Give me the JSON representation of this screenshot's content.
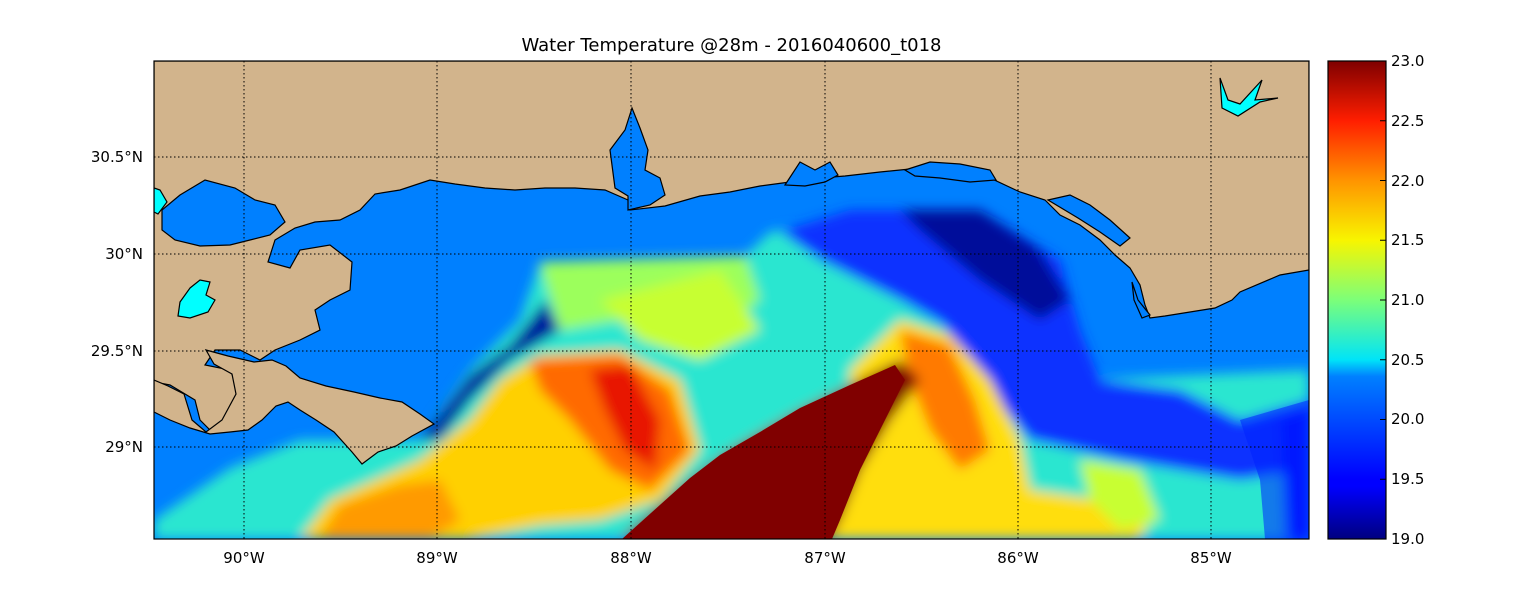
{
  "title": "Water Temperature @28m - 2016040600_t018",
  "lon_labels": [
    "90°W",
    "89°W",
    "88°W",
    "87°W",
    "86°W",
    "85°W"
  ],
  "lat_labels": [
    "30.5°N",
    "30°N",
    "29.5°N",
    "29°N"
  ],
  "colorbar": {
    "min": 19.0,
    "max": 23.0,
    "tick_labels": [
      "23.0",
      "22.5",
      "22.0",
      "21.5",
      "21.0",
      "20.5",
      "20.0",
      "19.5",
      "19.0"
    ],
    "colormap": "jet"
  },
  "colors": {
    "land": "#d2b48c",
    "lake": "#00ffff",
    "water_default": "#0080ff",
    "coast": "#000000"
  }
}
